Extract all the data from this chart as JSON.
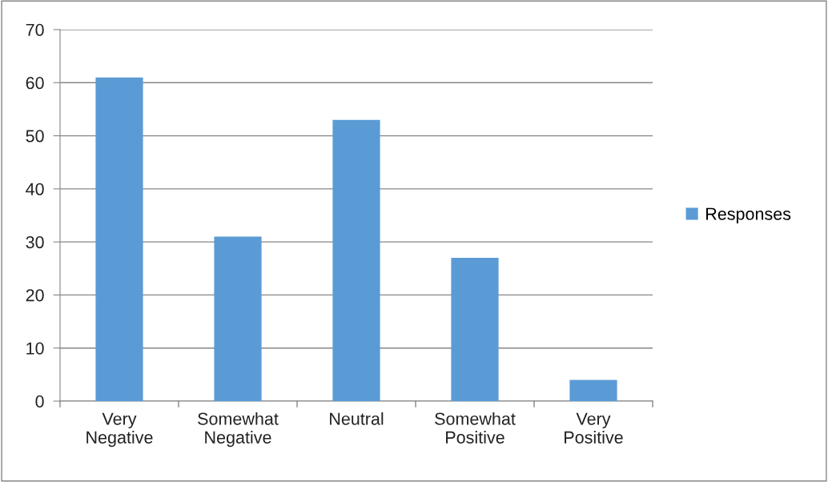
{
  "chart_data": {
    "type": "bar",
    "categories": [
      "Very\nNegative",
      "Somewhat\nNegative",
      "Neutral",
      "Somewhat\nPositive",
      "Very\nPositive"
    ],
    "series": [
      {
        "name": "Responses",
        "color": "#5b9bd5",
        "values": [
          61,
          31,
          53,
          27,
          4
        ]
      }
    ],
    "ylim": [
      0,
      70
    ],
    "yticks": [
      0,
      10,
      20,
      30,
      40,
      50,
      60,
      70
    ],
    "grid": "y",
    "legend": "right"
  }
}
